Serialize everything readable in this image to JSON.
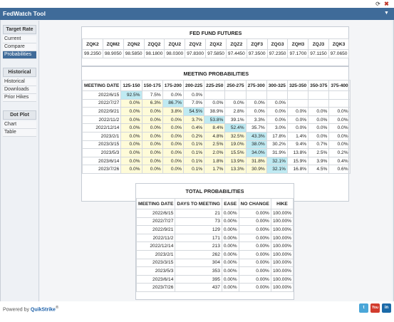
{
  "window": {
    "title": "FedWatch Tool"
  },
  "sidebar": {
    "sections": [
      {
        "head": "Target Rate",
        "items": [
          "Current",
          "Compare",
          "Probabilities"
        ]
      },
      {
        "head": "Historical",
        "items": [
          "Historical",
          "Downloads",
          "Prior Hikes"
        ]
      },
      {
        "head": "Dot Plot",
        "items": [
          "Chart",
          "Table"
        ]
      }
    ],
    "active": "Probabilities"
  },
  "futures": {
    "title": "FED FUND FUTURES",
    "headers": [
      "ZQK2",
      "ZQM2",
      "ZQN2",
      "ZQQ2",
      "ZQU2",
      "ZQV2",
      "ZQX2",
      "ZQZ2",
      "ZQF3",
      "ZQG3",
      "ZQH3",
      "ZQJ3",
      "ZQK3"
    ],
    "values": [
      "99.2350",
      "98.9050",
      "98.5850",
      "98.1800",
      "98.0300",
      "97.8300",
      "97.5850",
      "97.4450",
      "97.3500",
      "97.2350",
      "97.1700",
      "97.1150",
      "97.0650"
    ]
  },
  "meeting": {
    "title": "MEETING PROBABILITIES",
    "headers": [
      "MEETING DATE",
      "125-150",
      "150-175",
      "175-200",
      "200-225",
      "225-250",
      "250-275",
      "275-300",
      "300-325",
      "325-350",
      "350-375",
      "375-400"
    ],
    "rows": [
      [
        "2022/6/15",
        "92.5%",
        "7.5%",
        "0.0%",
        "0.0%",
        "",
        "",
        "",
        "",
        "",
        "",
        ""
      ],
      [
        "2022/7/27",
        "0.0%",
        "6.3%",
        "86.7%",
        "7.0%",
        "0.0%",
        "0.0%",
        "0.0%",
        "0.0%",
        "",
        "",
        ""
      ],
      [
        "2022/9/21",
        "0.0%",
        "0.0%",
        "3.8%",
        "54.5%",
        "38.9%",
        "2.8%",
        "0.0%",
        "0.0%",
        "0.0%",
        "0.0%",
        "0.0%"
      ],
      [
        "2022/11/2",
        "0.0%",
        "0.0%",
        "0.0%",
        "3.7%",
        "53.8%",
        "39.1%",
        "3.3%",
        "0.0%",
        "0.0%",
        "0.0%",
        "0.0%"
      ],
      [
        "2022/12/14",
        "0.0%",
        "0.0%",
        "0.0%",
        "0.4%",
        "8.4%",
        "52.4%",
        "35.7%",
        "3.0%",
        "0.0%",
        "0.0%",
        "0.0%"
      ],
      [
        "2023/2/1",
        "0.0%",
        "0.0%",
        "0.0%",
        "0.2%",
        "4.8%",
        "32.5%",
        "43.3%",
        "17.8%",
        "1.4%",
        "0.0%",
        "0.0%"
      ],
      [
        "2023/3/15",
        "0.0%",
        "0.0%",
        "0.0%",
        "0.1%",
        "2.5%",
        "19.0%",
        "38.0%",
        "30.2%",
        "9.4%",
        "0.7%",
        "0.0%"
      ],
      [
        "2023/5/3",
        "0.0%",
        "0.0%",
        "0.0%",
        "0.1%",
        "2.0%",
        "15.5%",
        "34.0%",
        "31.9%",
        "13.8%",
        "2.5%",
        "0.2%"
      ],
      [
        "2023/6/14",
        "0.0%",
        "0.0%",
        "0.0%",
        "0.1%",
        "1.8%",
        "13.9%",
        "31.8%",
        "32.1%",
        "15.9%",
        "3.9%",
        "0.4%"
      ],
      [
        "2023/7/26",
        "0.0%",
        "0.0%",
        "0.0%",
        "0.1%",
        "1.7%",
        "13.3%",
        "30.9%",
        "32.1%",
        "16.8%",
        "4.5%",
        "0.6%"
      ]
    ]
  },
  "total": {
    "title": "TOTAL PROBABILITIES",
    "headers": [
      "MEETING DATE",
      "DAYS TO MEETING",
      "EASE",
      "NO CHANGE",
      "HIKE"
    ],
    "rows": [
      [
        "2022/6/15",
        "21",
        "0.00%",
        "0.00%",
        "100.00%"
      ],
      [
        "2022/7/27",
        "73",
        "0.00%",
        "0.00%",
        "100.00%"
      ],
      [
        "2022/9/21",
        "129",
        "0.00%",
        "0.00%",
        "100.00%"
      ],
      [
        "2022/11/2",
        "171",
        "0.00%",
        "0.00%",
        "100.00%"
      ],
      [
        "2022/12/14",
        "213",
        "0.00%",
        "0.00%",
        "100.00%"
      ],
      [
        "2023/2/1",
        "262",
        "0.00%",
        "0.00%",
        "100.00%"
      ],
      [
        "2023/3/15",
        "304",
        "0.00%",
        "0.00%",
        "100.00%"
      ],
      [
        "2023/5/3",
        "353",
        "0.00%",
        "0.00%",
        "100.00%"
      ],
      [
        "2023/6/14",
        "395",
        "0.00%",
        "0.00%",
        "100.00%"
      ],
      [
        "2023/7/26",
        "437",
        "0.00%",
        "0.00%",
        "100.00%"
      ]
    ]
  },
  "footer": {
    "powered": "Powered by",
    "brand": "QuikStrike",
    "reg": "®",
    "social": {
      "twitter": "t",
      "youtube": "You Tube",
      "linkedin": "in"
    }
  },
  "colors": {
    "header_blue": "#3f6b99",
    "highlight_cyan": "#bfeaf2",
    "highlight_yellow": "#fefbd8"
  },
  "icons": {
    "refresh": "refresh-icon",
    "close": "close-icon",
    "collapse": "collapse-icon"
  }
}
